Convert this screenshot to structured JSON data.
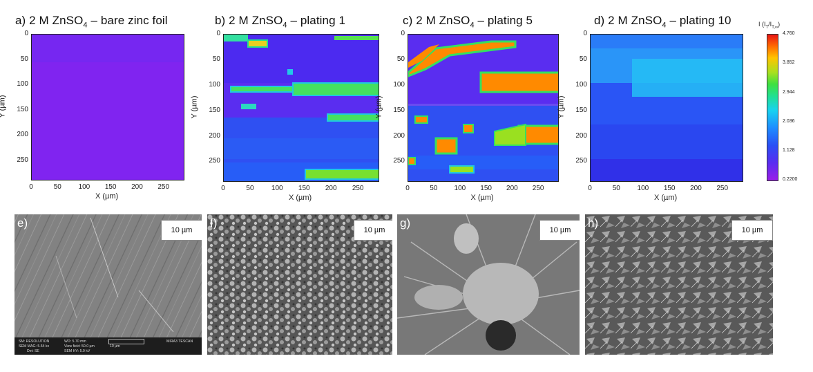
{
  "colors": {
    "ion_low": "#7a2cf0",
    "ion_mid": "#2a55f5",
    "ion_high": "#ff8c00",
    "bg": "#ffffff"
  },
  "panels": [
    {
      "label": "a)",
      "title_pre": "2 M ZnSO",
      "title_sub": "4",
      "title_post": " – bare zinc foil"
    },
    {
      "label": "b)",
      "title_pre": "2 M ZnSO",
      "title_sub": "4",
      "title_post": " –  plating 1"
    },
    {
      "label": "c)",
      "title_pre": "2 M ZnSO",
      "title_sub": "4",
      "title_post": " –  plating 5"
    },
    {
      "label": "d)",
      "title_pre": "2 M ZnSO",
      "title_sub": "4",
      "title_post": " –  plating 10"
    }
  ],
  "axes": {
    "xlabel": "X (µm)",
    "ylabel": "Y (µm)",
    "xticks": [
      "0",
      "50",
      "100",
      "150",
      "200",
      "250"
    ],
    "yticks": [
      "0",
      "50",
      "100",
      "150",
      "200",
      "250"
    ]
  },
  "colorbar": {
    "title": "I (I",
    "ticks": [
      "4.760",
      "3.852",
      "2.944",
      "2.036",
      "1.128",
      "0.2200"
    ]
  },
  "sem": [
    {
      "label": "e)",
      "scale": "10 µm"
    },
    {
      "label": "f)",
      "scale": "10 µm"
    },
    {
      "label": "g)",
      "scale": "10 µm"
    },
    {
      "label": "h)",
      "scale": "10 µm"
    }
  ],
  "infobar": {
    "r1a": "SM: RESOLUTION",
    "r1b": "WD: 5.70 mm",
    "r1c": "MIRA3 TESCAN",
    "r2a": "SEM MAG: 5.54 kx",
    "r2b": "View field: 50.0 µm",
    "r2c": "10 µm",
    "r3a": "Det: SE",
    "r3b": "SEM HV: 5.0 kV"
  }
}
